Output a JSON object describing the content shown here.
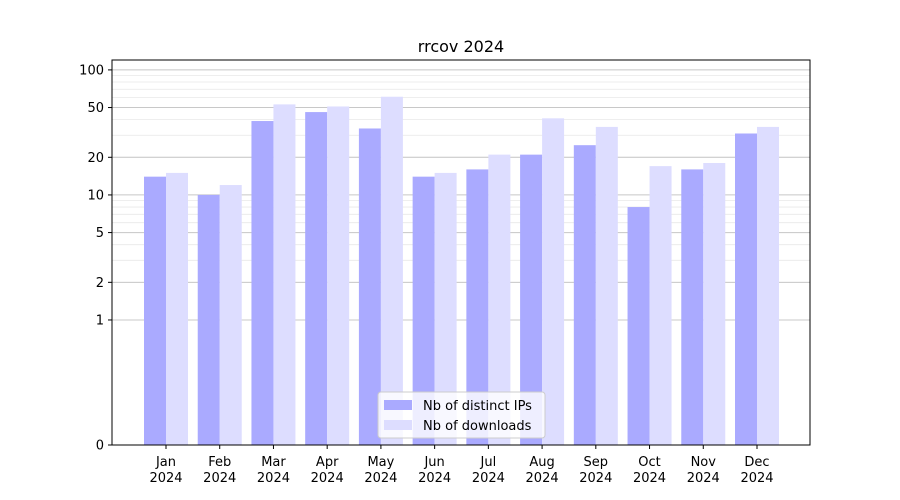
{
  "chart_data": {
    "type": "bar",
    "title": "rrcov 2024",
    "xlabel": "",
    "ylabel": "",
    "y_scale": "symlog",
    "ylim": [
      0,
      120
    ],
    "y_ticks": [
      0,
      1,
      2,
      5,
      10,
      20,
      50,
      100
    ],
    "y_tick_labels": [
      "0",
      "1",
      "2",
      "5",
      "10",
      "20",
      "50",
      "100"
    ],
    "grid": true,
    "legend_position": "bottom-center",
    "categories": [
      [
        "Jan",
        "2024"
      ],
      [
        "Feb",
        "2024"
      ],
      [
        "Mar",
        "2024"
      ],
      [
        "Apr",
        "2024"
      ],
      [
        "May",
        "2024"
      ],
      [
        "Jun",
        "2024"
      ],
      [
        "Jul",
        "2024"
      ],
      [
        "Aug",
        "2024"
      ],
      [
        "Sep",
        "2024"
      ],
      [
        "Oct",
        "2024"
      ],
      [
        "Nov",
        "2024"
      ],
      [
        "Dec",
        "2024"
      ]
    ],
    "series": [
      {
        "name": "Nb of distinct IPs",
        "color": "#aaaaff",
        "values": [
          14,
          10,
          39,
          46,
          34,
          14,
          16,
          21,
          25,
          8,
          16,
          31
        ]
      },
      {
        "name": "Nb of downloads",
        "color": "#ddddff",
        "values": [
          15,
          12,
          53,
          51,
          61,
          15,
          21,
          41,
          35,
          17,
          18,
          35
        ]
      }
    ]
  }
}
